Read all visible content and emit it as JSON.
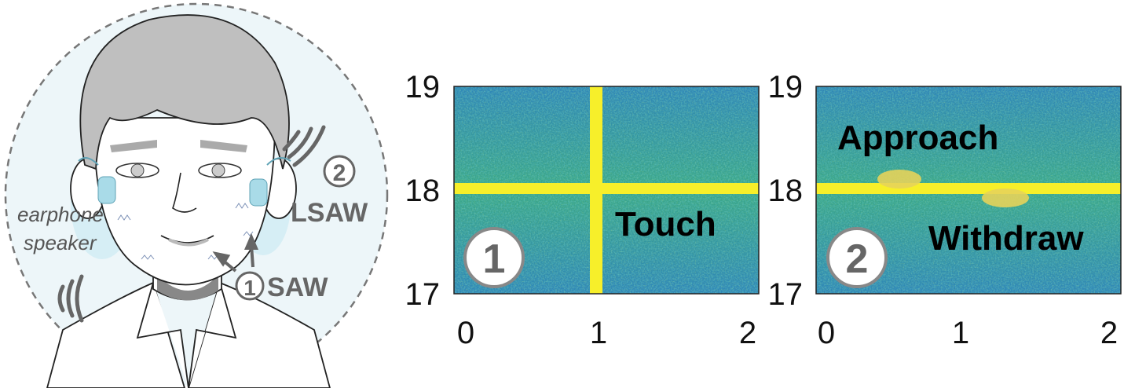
{
  "illustration": {
    "speaker_label_line1": "earphone",
    "speaker_label_line2": "speaker",
    "saw_num": "1",
    "saw_label": "SAW",
    "lsaw_num": "2",
    "lsaw_label": "LSAW"
  },
  "panels": [
    {
      "badge": "1",
      "annotations": [
        "Touch"
      ],
      "y_ticks": [
        "19",
        "18",
        "17"
      ],
      "x_ticks": [
        "0",
        "1",
        "2"
      ]
    },
    {
      "badge": "2",
      "annotations": [
        "Approach",
        "Withdraw"
      ],
      "y_ticks": [
        "19",
        "18",
        "17"
      ],
      "x_ticks": [
        "0",
        "1",
        "2"
      ]
    }
  ],
  "colors": {
    "spectrogram_bg": "#3aa58c",
    "highlight": "#f7ef2a",
    "face_bg": "#e8f4f8",
    "earphone": "#a9dbe8"
  }
}
